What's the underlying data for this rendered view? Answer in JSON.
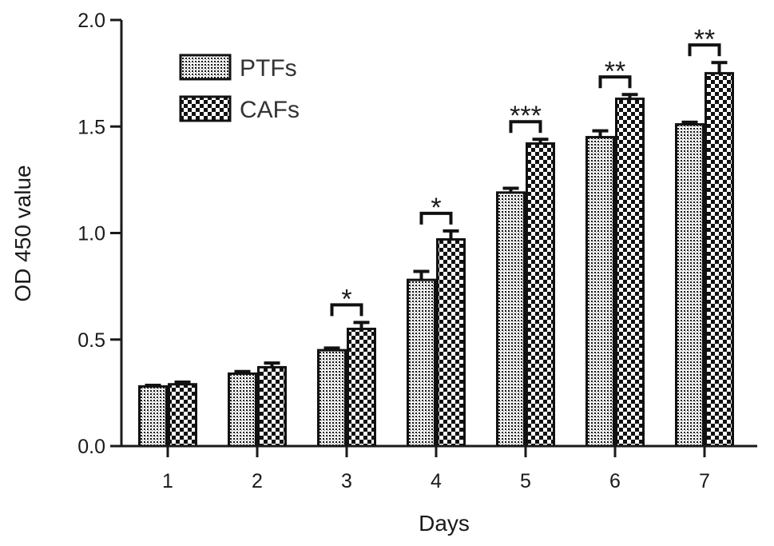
{
  "chart_data": {
    "type": "bar",
    "title": "",
    "xlabel": "Days",
    "ylabel": "OD 450 value",
    "categories": [
      "1",
      "2",
      "3",
      "4",
      "5",
      "6",
      "7"
    ],
    "ylim": [
      0,
      2.0
    ],
    "yticks": [
      "0.0",
      "0.5",
      "1.0",
      "1.5",
      "2.0"
    ],
    "legend_position": "top-left",
    "grid": false,
    "series": [
      {
        "name": "PTFs",
        "values": [
          0.28,
          0.34,
          0.45,
          0.78,
          1.19,
          1.45,
          1.51
        ],
        "errors": [
          0.005,
          0.01,
          0.01,
          0.04,
          0.02,
          0.03,
          0.01
        ],
        "pattern": "fine-dots"
      },
      {
        "name": "CAFs",
        "values": [
          0.29,
          0.37,
          0.55,
          0.97,
          1.42,
          1.63,
          1.75
        ],
        "errors": [
          0.01,
          0.02,
          0.03,
          0.04,
          0.02,
          0.02,
          0.05
        ],
        "pattern": "checker"
      }
    ],
    "significance": [
      "",
      "",
      "*",
      "*",
      "***",
      "**",
      "**"
    ]
  }
}
